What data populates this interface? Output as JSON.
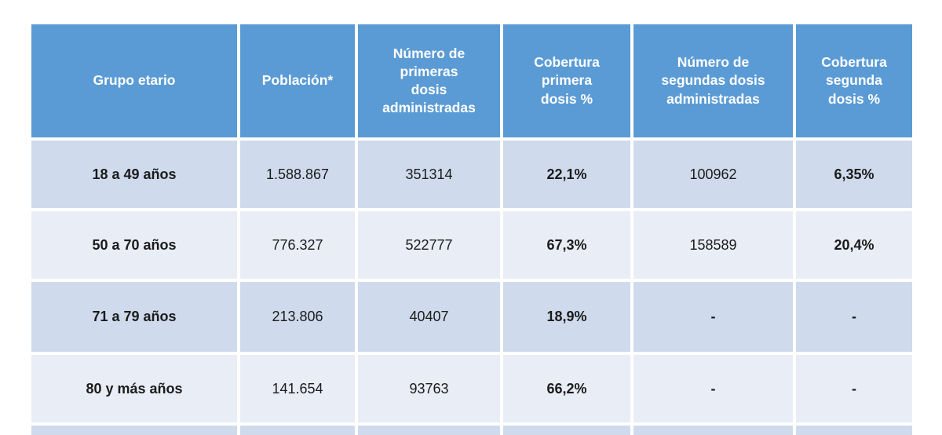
{
  "colors": {
    "header_bg": "#5b9bd5",
    "header_text": "#ffffff",
    "row_band_a": "#cfdbec",
    "row_band_b": "#e9edf6",
    "body_text": "#1b1b1b"
  },
  "chart_data": {
    "type": "table",
    "columns": [
      "Grupo etario",
      "Población*",
      "Número de\nprimeras\ndosis\nadministradas",
      "Cobertura\nprimera\ndosis %",
      "Número de\nsegundas dosis\nadministradas",
      "Cobertura\nsegunda\ndosis %"
    ],
    "rows": [
      [
        "18 a 49 años",
        "1.588.867",
        "351314",
        "22,1%",
        "100962",
        "6,35%"
      ],
      [
        "50 a 70 años",
        "776.327",
        "522777",
        "67,3%",
        "158589",
        "20,4%"
      ],
      [
        "71 a 79 años",
        "213.806",
        "40407",
        "18,9%",
        "-",
        "-"
      ],
      [
        "80 y más años",
        "141.654",
        "93763",
        "66,2%",
        "-",
        "-"
      ]
    ]
  }
}
